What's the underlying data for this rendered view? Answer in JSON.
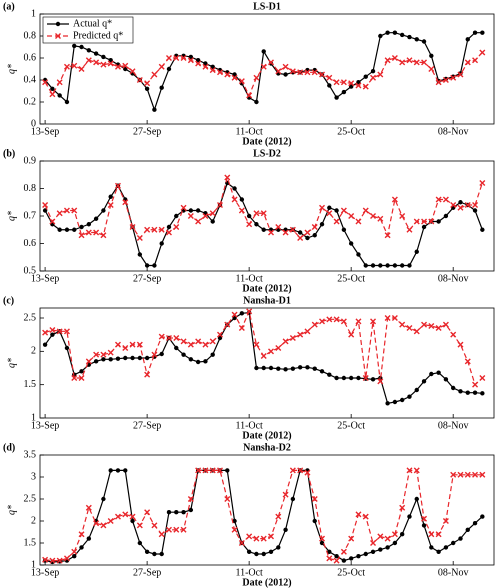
{
  "chart_data": [
    {
      "type": "line",
      "panel_label": "(a)",
      "title": "LS-D1",
      "xlabel": "Date (2012)",
      "ylabel": "q*",
      "x": [
        0,
        1,
        2,
        3,
        4,
        5,
        6,
        7,
        8,
        9,
        10,
        11,
        12,
        13,
        14,
        15,
        16,
        17,
        18,
        19,
        20,
        21,
        22,
        23,
        24,
        25,
        26,
        27,
        28,
        29,
        30,
        31,
        32,
        33,
        34,
        35,
        36,
        37,
        38,
        39,
        40,
        41,
        42,
        43,
        44,
        45,
        46,
        47,
        48,
        49,
        50,
        51,
        52,
        53,
        54,
        55,
        56,
        57,
        58,
        59,
        60
      ],
      "xlim": [
        -0.7,
        61.6
      ],
      "xticks": [
        {
          "value": 0,
          "label": "13-Sep"
        },
        {
          "value": 14,
          "label": "27-Sep"
        },
        {
          "value": 28,
          "label": "11-Oct"
        },
        {
          "value": 42,
          "label": "25-Oct"
        },
        {
          "value": 56,
          "label": "08-Nov"
        }
      ],
      "ylim": [
        0,
        1
      ],
      "yticks": [
        0,
        0.2,
        0.4,
        0.6,
        0.8,
        1
      ],
      "legend": "upper left",
      "series": [
        {
          "name": "Actual q*",
          "color": "#000000",
          "linestyle": "solid",
          "marker": "o",
          "values": [
            0.4,
            0.32,
            0.26,
            0.2,
            0.71,
            0.7,
            0.67,
            0.64,
            0.61,
            0.58,
            0.54,
            0.5,
            0.46,
            0.4,
            0.32,
            0.13,
            0.33,
            0.5,
            0.62,
            0.62,
            0.61,
            0.58,
            0.55,
            0.52,
            0.49,
            0.47,
            0.45,
            0.37,
            0.24,
            0.2,
            0.66,
            0.55,
            0.46,
            0.45,
            0.47,
            0.47,
            0.49,
            0.49,
            0.45,
            0.35,
            0.24,
            0.29,
            0.34,
            0.38,
            0.43,
            0.48,
            0.8,
            0.83,
            0.83,
            0.81,
            0.79,
            0.77,
            0.75,
            0.62,
            0.39,
            0.41,
            0.43,
            0.46,
            0.77,
            0.83,
            0.83
          ]
        },
        {
          "name": "Predicted q*",
          "color": "#e8262b",
          "linestyle": "dashed",
          "marker": "x",
          "values": [
            0.38,
            0.27,
            0.38,
            0.52,
            0.53,
            0.5,
            0.58,
            0.56,
            0.54,
            0.55,
            0.52,
            0.53,
            0.48,
            0.4,
            0.37,
            0.45,
            0.52,
            0.6,
            0.6,
            0.6,
            0.58,
            0.55,
            0.52,
            0.49,
            0.47,
            0.45,
            0.42,
            0.39,
            0.26,
            0.42,
            0.52,
            0.56,
            0.48,
            0.52,
            0.48,
            0.47,
            0.47,
            0.47,
            0.45,
            0.42,
            0.38,
            0.38,
            0.37,
            0.35,
            0.34,
            0.42,
            0.45,
            0.58,
            0.6,
            0.56,
            0.58,
            0.56,
            0.56,
            0.5,
            0.38,
            0.4,
            0.42,
            0.45,
            0.56,
            0.58,
            0.65
          ]
        }
      ]
    },
    {
      "type": "line",
      "panel_label": "(b)",
      "title": "LS-D2",
      "xlabel": "Date (2012)",
      "ylabel": "q*",
      "x": [
        0,
        1,
        2,
        3,
        4,
        5,
        6,
        7,
        8,
        9,
        10,
        11,
        12,
        13,
        14,
        15,
        16,
        17,
        18,
        19,
        20,
        21,
        22,
        23,
        24,
        25,
        26,
        27,
        28,
        29,
        30,
        31,
        32,
        33,
        34,
        35,
        36,
        37,
        38,
        39,
        40,
        41,
        42,
        43,
        44,
        45,
        46,
        47,
        48,
        49,
        50,
        51,
        52,
        53,
        54,
        55,
        56,
        57,
        58,
        59,
        60
      ],
      "xlim": [
        -0.7,
        61.6
      ],
      "xticks": [
        {
          "value": 0,
          "label": "13-Sep"
        },
        {
          "value": 14,
          "label": "27-Sep"
        },
        {
          "value": 28,
          "label": "11-Oct"
        },
        {
          "value": 42,
          "label": "25-Oct"
        },
        {
          "value": 56,
          "label": "08-Nov"
        }
      ],
      "ylim": [
        0.5,
        0.9
      ],
      "yticks": [
        0.5,
        0.6,
        0.7,
        0.8,
        0.9
      ],
      "series": [
        {
          "name": "Actual q*",
          "color": "#000000",
          "linestyle": "solid",
          "marker": "o",
          "values": [
            0.72,
            0.67,
            0.65,
            0.65,
            0.65,
            0.66,
            0.67,
            0.69,
            0.72,
            0.77,
            0.81,
            0.76,
            0.66,
            0.56,
            0.52,
            0.52,
            0.6,
            0.66,
            0.7,
            0.72,
            0.72,
            0.72,
            0.71,
            0.68,
            0.74,
            0.82,
            0.8,
            0.76,
            0.7,
            0.67,
            0.65,
            0.65,
            0.65,
            0.65,
            0.65,
            0.64,
            0.62,
            0.63,
            0.67,
            0.73,
            0.72,
            0.65,
            0.6,
            0.56,
            0.52,
            0.52,
            0.52,
            0.52,
            0.52,
            0.52,
            0.52,
            0.57,
            0.66,
            0.68,
            0.68,
            0.7,
            0.73,
            0.75,
            0.74,
            0.72,
            0.65
          ]
        },
        {
          "name": "Predicted q*",
          "color": "#e8262b",
          "linestyle": "dashed",
          "marker": "x",
          "values": [
            0.74,
            0.68,
            0.71,
            0.72,
            0.72,
            0.63,
            0.64,
            0.64,
            0.63,
            0.74,
            0.81,
            0.75,
            0.66,
            0.62,
            0.65,
            0.65,
            0.65,
            0.64,
            0.66,
            0.73,
            0.7,
            0.68,
            0.7,
            0.71,
            0.74,
            0.84,
            0.76,
            0.72,
            0.67,
            0.71,
            0.71,
            0.64,
            0.66,
            0.64,
            0.65,
            0.62,
            0.64,
            0.66,
            0.73,
            0.71,
            0.68,
            0.72,
            0.7,
            0.68,
            0.72,
            0.7,
            0.69,
            0.63,
            0.76,
            0.7,
            0.65,
            0.68,
            0.68,
            0.68,
            0.76,
            0.76,
            0.74,
            0.73,
            0.74,
            0.74,
            0.82
          ]
        }
      ]
    },
    {
      "type": "line",
      "panel_label": "(c)",
      "title": "Nansha-D1",
      "xlabel": "Date (2012)",
      "ylabel": "q*",
      "x": [
        0,
        1,
        2,
        3,
        4,
        5,
        6,
        7,
        8,
        9,
        10,
        11,
        12,
        13,
        14,
        15,
        16,
        17,
        18,
        19,
        20,
        21,
        22,
        23,
        24,
        25,
        26,
        27,
        28,
        29,
        30,
        31,
        32,
        33,
        34,
        35,
        36,
        37,
        38,
        39,
        40,
        41,
        42,
        43,
        44,
        45,
        46,
        47,
        48,
        49,
        50,
        51,
        52,
        53,
        54,
        55,
        56,
        57,
        58,
        59,
        60
      ],
      "xlim": [
        -0.7,
        61.6
      ],
      "xticks": [
        {
          "value": 0,
          "label": "13-Sep"
        },
        {
          "value": 14,
          "label": "27-Sep"
        },
        {
          "value": 28,
          "label": "11-Oct"
        },
        {
          "value": 42,
          "label": "25-Oct"
        },
        {
          "value": 56,
          "label": "08-Nov"
        }
      ],
      "ylim": [
        1,
        2.65
      ],
      "yticks": [
        1,
        1.5,
        2,
        2.5
      ],
      "series": [
        {
          "name": "Actual q*",
          "color": "#000000",
          "linestyle": "solid",
          "marker": "o",
          "values": [
            2.1,
            2.25,
            2.3,
            2.05,
            1.65,
            1.7,
            1.8,
            1.85,
            1.88,
            1.88,
            1.89,
            1.9,
            1.9,
            1.9,
            1.9,
            1.92,
            1.96,
            2.2,
            2.05,
            1.95,
            1.88,
            1.84,
            1.85,
            1.95,
            2.2,
            2.4,
            2.5,
            2.57,
            2.58,
            1.75,
            1.75,
            1.75,
            1.74,
            1.73,
            1.74,
            1.76,
            1.76,
            1.74,
            1.7,
            1.65,
            1.6,
            1.6,
            1.6,
            1.6,
            1.59,
            1.58,
            1.6,
            1.22,
            1.24,
            1.27,
            1.32,
            1.42,
            1.55,
            1.66,
            1.68,
            1.58,
            1.45,
            1.4,
            1.38,
            1.38,
            1.37
          ]
        },
        {
          "name": "Predicted q*",
          "color": "#e8262b",
          "linestyle": "dashed",
          "marker": "x",
          "values": [
            2.28,
            2.32,
            2.3,
            2.3,
            1.6,
            1.6,
            1.85,
            1.95,
            1.95,
            1.98,
            2.1,
            2.05,
            2.1,
            2.1,
            1.65,
            1.95,
            2.22,
            2.2,
            2.2,
            2.15,
            2.1,
            2.15,
            2.1,
            2.15,
            2.25,
            2.4,
            2.55,
            2.35,
            2.6,
            2.1,
            1.93,
            2.0,
            2.05,
            2.15,
            2.2,
            2.25,
            2.3,
            2.4,
            2.45,
            2.48,
            2.48,
            2.45,
            2.25,
            2.45,
            1.6,
            2.45,
            1.55,
            2.5,
            2.5,
            2.4,
            2.35,
            2.3,
            2.4,
            2.38,
            2.35,
            2.4,
            2.25,
            2.1,
            1.85,
            1.5,
            1.6
          ]
        }
      ]
    },
    {
      "type": "line",
      "panel_label": "(d)",
      "title": "Nansha-D2",
      "xlabel": "Date (2012)",
      "ylabel": "q*",
      "x": [
        0,
        1,
        2,
        3,
        4,
        5,
        6,
        7,
        8,
        9,
        10,
        11,
        12,
        13,
        14,
        15,
        16,
        17,
        18,
        19,
        20,
        21,
        22,
        23,
        24,
        25,
        26,
        27,
        28,
        29,
        30,
        31,
        32,
        33,
        34,
        35,
        36,
        37,
        38,
        39,
        40,
        41,
        42,
        43,
        44,
        45,
        46,
        47,
        48,
        49,
        50,
        51,
        52,
        53,
        54,
        55,
        56,
        57,
        58,
        59,
        60
      ],
      "xlim": [
        -0.7,
        61.6
      ],
      "xticks": [
        {
          "value": 0,
          "label": "13-Sep"
        },
        {
          "value": 14,
          "label": "27-Sep"
        },
        {
          "value": 28,
          "label": "11-Oct"
        },
        {
          "value": 42,
          "label": "25-Oct"
        },
        {
          "value": 56,
          "label": "08-Nov"
        }
      ],
      "ylim": [
        1,
        3.5
      ],
      "yticks": [
        1,
        1.5,
        2,
        2.5,
        3,
        3.5
      ],
      "series": [
        {
          "name": "Actual q*",
          "color": "#000000",
          "linestyle": "solid",
          "marker": "o",
          "values": [
            1.1,
            1.07,
            1.08,
            1.1,
            1.2,
            1.4,
            1.6,
            2.0,
            2.5,
            3.15,
            3.15,
            3.15,
            2.0,
            1.5,
            1.3,
            1.25,
            1.25,
            2.2,
            2.2,
            2.2,
            2.25,
            3.15,
            3.15,
            3.15,
            3.15,
            3.15,
            2.0,
            1.5,
            1.3,
            1.25,
            1.25,
            1.3,
            1.4,
            1.8,
            2.5,
            3.15,
            3.15,
            2.0,
            1.5,
            1.3,
            1.2,
            1.1,
            1.15,
            1.2,
            1.25,
            1.3,
            1.35,
            1.4,
            1.5,
            1.7,
            2.1,
            2.5,
            1.9,
            1.4,
            1.3,
            1.4,
            1.5,
            1.6,
            1.8,
            1.95,
            2.1
          ]
        },
        {
          "name": "Predicted q*",
          "color": "#e8262b",
          "linestyle": "dashed",
          "marker": "x",
          "values": [
            1.12,
            1.1,
            1.1,
            1.15,
            1.3,
            1.7,
            2.3,
            1.95,
            1.9,
            2.0,
            2.1,
            2.15,
            2.1,
            1.9,
            2.2,
            1.9,
            1.7,
            1.8,
            1.8,
            1.8,
            2.5,
            3.15,
            3.15,
            3.15,
            3.15,
            2.5,
            1.8,
            1.5,
            1.65,
            1.6,
            1.6,
            1.65,
            2.1,
            2.6,
            3.15,
            3.15,
            3.1,
            2.5,
            1.6,
            1.15,
            1.1,
            1.3,
            1.6,
            2.15,
            2.1,
            1.5,
            1.65,
            1.6,
            1.7,
            2.3,
            3.15,
            3.15,
            2.05,
            1.7,
            1.7,
            2.0,
            3.05,
            3.05,
            3.05,
            3.05,
            3.05
          ]
        }
      ]
    }
  ]
}
